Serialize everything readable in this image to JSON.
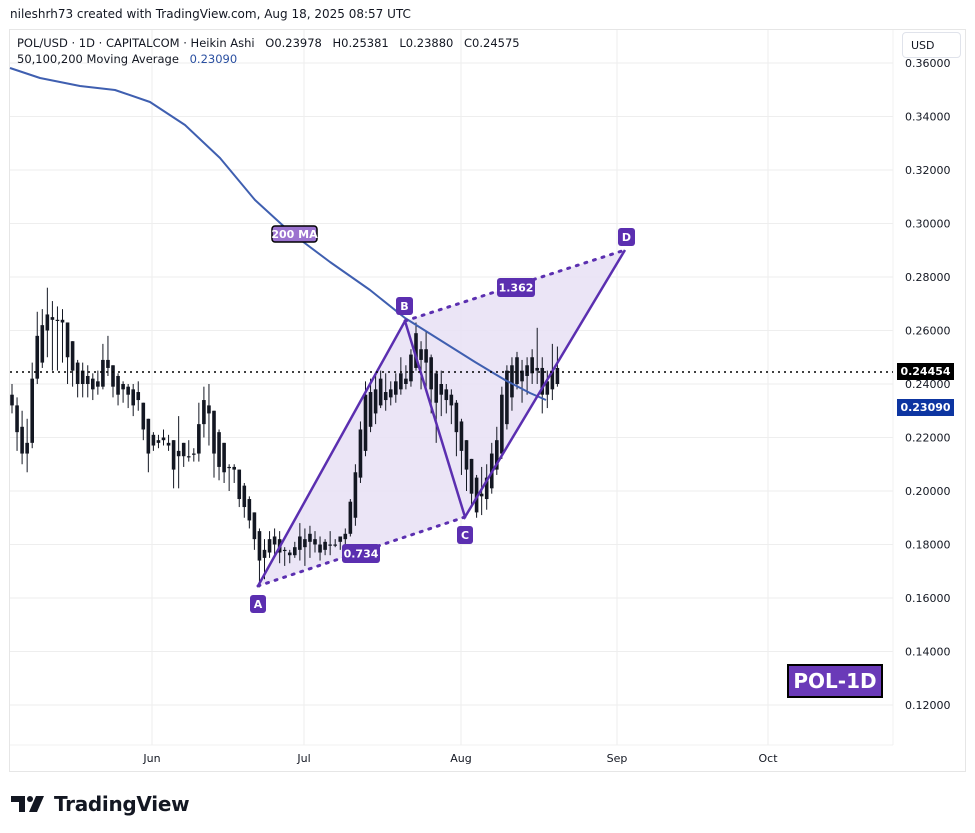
{
  "header": {
    "credit": "nileshrh73 created with TradingView.com, Aug 18, 2025 08:57 UTC"
  },
  "legend": {
    "symbol": "POL/USD · 1D · CAPITALCOM · Heikin Ashi",
    "open": "O0.23978",
    "high": "H0.25381",
    "low": "L0.23880",
    "close": "C0.24575",
    "ma_label": "50,100,200 Moving Average",
    "ma_value": "0.23090"
  },
  "price_axis": {
    "currency_button": "USD",
    "last_price_tag": "0.24454",
    "ma_price_tag": "0.23090",
    "last_price_color": "#000000",
    "ma_tag_color": "#0d35a1"
  },
  "badge": {
    "label": "POL-1D",
    "color": "#6a3ab8"
  },
  "footer": {
    "logo_text": "TradingView"
  },
  "annotations": {
    "ma_label": "200 MA",
    "points": [
      "A",
      "B",
      "C",
      "D"
    ],
    "ratio_xab": "0.734",
    "ratio_bd": "1.362",
    "pattern_color": "#5b2fb0",
    "fill_color": "#e8e0f5"
  },
  "chart_data": {
    "type": "candlestick",
    "title": "POL/USD · 1D · CAPITALCOM · Heikin Ashi",
    "ohlc_last": {
      "open": 0.23978,
      "high": 0.25381,
      "low": 0.2388,
      "close": 0.24575
    },
    "last_price": 0.24454,
    "xlabel": "",
    "ylabel": "USD",
    "x_ticks": [
      "Jun",
      "Jul",
      "Aug",
      "Sep",
      "Oct"
    ],
    "y_ticks": [
      0.12,
      0.14,
      0.16,
      0.18,
      0.2,
      0.22,
      0.24,
      0.26,
      0.28,
      0.3,
      0.32,
      0.34,
      0.36
    ],
    "ylim": [
      0.11,
      0.37
    ],
    "grid": true,
    "series": [
      {
        "name": "200 MA",
        "indicator": "50,100,200 Moving Average",
        "current_value": 0.2309,
        "color": "#3f5fb0",
        "points": [
          {
            "date": "May 3",
            "value": 0.357
          },
          {
            "date": "May 13",
            "value": 0.352
          },
          {
            "date": "May 23",
            "value": 0.349
          },
          {
            "date": "Jun 1",
            "value": 0.343
          },
          {
            "date": "Jun 10",
            "value": 0.33
          },
          {
            "date": "Jun 20",
            "value": 0.308
          },
          {
            "date": "Jul 1",
            "value": 0.288
          },
          {
            "date": "Jul 10",
            "value": 0.277
          },
          {
            "date": "Jul 22",
            "value": 0.263
          },
          {
            "date": "Aug 1",
            "value": 0.249
          },
          {
            "date": "Aug 10",
            "value": 0.239
          },
          {
            "date": "Aug 18",
            "value": 0.2309
          }
        ]
      }
    ],
    "harmonic_pattern": {
      "points": [
        {
          "label": "A",
          "date": "Jun 21",
          "price": 0.164
        },
        {
          "label": "B",
          "date": "Jul 21",
          "price": 0.263
        },
        {
          "label": "C",
          "date": "Aug 1",
          "price": 0.19
        },
        {
          "label": "D",
          "date": "Sep 2",
          "price": 0.29
        }
      ],
      "ratios": [
        {
          "between": "A-C",
          "value": 0.734
        },
        {
          "between": "B-D",
          "value": 1.362
        }
      ]
    },
    "candles": [
      {
        "d": 0,
        "o": 0.236,
        "h": 0.24,
        "l": 0.229,
        "c": 0.232
      },
      {
        "d": 1,
        "o": 0.232,
        "h": 0.235,
        "l": 0.215,
        "c": 0.222
      },
      {
        "d": 2,
        "o": 0.224,
        "h": 0.23,
        "l": 0.21,
        "c": 0.214
      },
      {
        "d": 3,
        "o": 0.214,
        "h": 0.227,
        "l": 0.207,
        "c": 0.218
      },
      {
        "d": 4,
        "o": 0.218,
        "h": 0.248,
        "l": 0.216,
        "c": 0.242
      },
      {
        "d": 5,
        "o": 0.242,
        "h": 0.267,
        "l": 0.24,
        "c": 0.258
      },
      {
        "d": 6,
        "o": 0.248,
        "h": 0.268,
        "l": 0.246,
        "c": 0.262
      },
      {
        "d": 7,
        "o": 0.26,
        "h": 0.276,
        "l": 0.25,
        "c": 0.266
      },
      {
        "d": 8,
        "o": 0.265,
        "h": 0.271,
        "l": 0.245,
        "c": 0.264
      },
      {
        "d": 9,
        "o": 0.264,
        "h": 0.269,
        "l": 0.245,
        "c": 0.264
      },
      {
        "d": 10,
        "o": 0.264,
        "h": 0.268,
        "l": 0.248,
        "c": 0.263
      },
      {
        "d": 11,
        "o": 0.263,
        "h": 0.263,
        "l": 0.24,
        "c": 0.25
      },
      {
        "d": 12,
        "o": 0.256,
        "h": 0.256,
        "l": 0.239,
        "c": 0.245
      },
      {
        "d": 13,
        "o": 0.248,
        "h": 0.249,
        "l": 0.235,
        "c": 0.24
      },
      {
        "d": 14,
        "o": 0.245,
        "h": 0.248,
        "l": 0.235,
        "c": 0.24
      },
      {
        "d": 15,
        "o": 0.243,
        "h": 0.247,
        "l": 0.235,
        "c": 0.24
      },
      {
        "d": 16,
        "o": 0.242,
        "h": 0.244,
        "l": 0.234,
        "c": 0.238
      },
      {
        "d": 17,
        "o": 0.239,
        "h": 0.245,
        "l": 0.236,
        "c": 0.241
      },
      {
        "d": 18,
        "o": 0.239,
        "h": 0.255,
        "l": 0.238,
        "c": 0.249
      },
      {
        "d": 19,
        "o": 0.249,
        "h": 0.258,
        "l": 0.243,
        "c": 0.246
      },
      {
        "d": 20,
        "o": 0.247,
        "h": 0.247,
        "l": 0.235,
        "c": 0.239
      },
      {
        "d": 21,
        "o": 0.243,
        "h": 0.244,
        "l": 0.232,
        "c": 0.236
      },
      {
        "d": 22,
        "o": 0.24,
        "h": 0.241,
        "l": 0.233,
        "c": 0.238
      },
      {
        "d": 23,
        "o": 0.239,
        "h": 0.24,
        "l": 0.231,
        "c": 0.236
      },
      {
        "d": 24,
        "o": 0.238,
        "h": 0.24,
        "l": 0.228,
        "c": 0.232
      },
      {
        "d": 25,
        "o": 0.237,
        "h": 0.241,
        "l": 0.23,
        "c": 0.234
      },
      {
        "d": 26,
        "o": 0.233,
        "h": 0.233,
        "l": 0.219,
        "c": 0.223
      },
      {
        "d": 27,
        "o": 0.227,
        "h": 0.227,
        "l": 0.207,
        "c": 0.214
      },
      {
        "d": 28,
        "o": 0.221,
        "h": 0.222,
        "l": 0.215,
        "c": 0.217
      },
      {
        "d": 29,
        "o": 0.218,
        "h": 0.221,
        "l": 0.216,
        "c": 0.219
      },
      {
        "d": 30,
        "o": 0.22,
        "h": 0.223,
        "l": 0.217,
        "c": 0.219
      },
      {
        "d": 31,
        "o": 0.218,
        "h": 0.221,
        "l": 0.215,
        "c": 0.217
      },
      {
        "d": 32,
        "o": 0.219,
        "h": 0.219,
        "l": 0.201,
        "c": 0.208
      },
      {
        "d": 33,
        "o": 0.213,
        "h": 0.228,
        "l": 0.201,
        "c": 0.215
      },
      {
        "d": 34,
        "o": 0.218,
        "h": 0.218,
        "l": 0.209,
        "c": 0.213
      },
      {
        "d": 35,
        "o": 0.213,
        "h": 0.219,
        "l": 0.211,
        "c": 0.213
      },
      {
        "d": 36,
        "o": 0.214,
        "h": 0.216,
        "l": 0.211,
        "c": 0.214
      },
      {
        "d": 37,
        "o": 0.214,
        "h": 0.233,
        "l": 0.211,
        "c": 0.225
      },
      {
        "d": 38,
        "o": 0.225,
        "h": 0.239,
        "l": 0.22,
        "c": 0.234
      },
      {
        "d": 39,
        "o": 0.232,
        "h": 0.24,
        "l": 0.217,
        "c": 0.229
      },
      {
        "d": 40,
        "o": 0.23,
        "h": 0.23,
        "l": 0.205,
        "c": 0.214
      },
      {
        "d": 41,
        "o": 0.222,
        "h": 0.223,
        "l": 0.204,
        "c": 0.209
      },
      {
        "d": 42,
        "o": 0.218,
        "h": 0.218,
        "l": 0.203,
        "c": 0.207
      },
      {
        "d": 43,
        "o": 0.209,
        "h": 0.21,
        "l": 0.2,
        "c": 0.209
      },
      {
        "d": 44,
        "o": 0.209,
        "h": 0.21,
        "l": 0.203,
        "c": 0.208
      },
      {
        "d": 45,
        "o": 0.208,
        "h": 0.208,
        "l": 0.194,
        "c": 0.197
      },
      {
        "d": 46,
        "o": 0.202,
        "h": 0.203,
        "l": 0.19,
        "c": 0.194
      },
      {
        "d": 47,
        "o": 0.197,
        "h": 0.198,
        "l": 0.186,
        "c": 0.189
      },
      {
        "d": 48,
        "o": 0.192,
        "h": 0.192,
        "l": 0.178,
        "c": 0.182
      },
      {
        "d": 49,
        "o": 0.185,
        "h": 0.186,
        "l": 0.164,
        "c": 0.174
      },
      {
        "d": 50,
        "o": 0.175,
        "h": 0.182,
        "l": 0.167,
        "c": 0.178
      },
      {
        "d": 51,
        "o": 0.177,
        "h": 0.185,
        "l": 0.175,
        "c": 0.182
      },
      {
        "d": 52,
        "o": 0.18,
        "h": 0.186,
        "l": 0.176,
        "c": 0.183
      },
      {
        "d": 53,
        "o": 0.182,
        "h": 0.185,
        "l": 0.173,
        "c": 0.177
      },
      {
        "d": 54,
        "o": 0.178,
        "h": 0.179,
        "l": 0.172,
        "c": 0.178
      },
      {
        "d": 55,
        "o": 0.177,
        "h": 0.178,
        "l": 0.173,
        "c": 0.176
      },
      {
        "d": 56,
        "o": 0.176,
        "h": 0.181,
        "l": 0.175,
        "c": 0.179
      },
      {
        "d": 57,
        "o": 0.178,
        "h": 0.188,
        "l": 0.174,
        "c": 0.183
      },
      {
        "d": 58,
        "o": 0.182,
        "h": 0.186,
        "l": 0.172,
        "c": 0.179
      },
      {
        "d": 59,
        "o": 0.181,
        "h": 0.187,
        "l": 0.175,
        "c": 0.184
      },
      {
        "d": 60,
        "o": 0.182,
        "h": 0.185,
        "l": 0.177,
        "c": 0.18
      },
      {
        "d": 61,
        "o": 0.18,
        "h": 0.183,
        "l": 0.174,
        "c": 0.177
      },
      {
        "d": 62,
        "o": 0.178,
        "h": 0.182,
        "l": 0.176,
        "c": 0.181
      },
      {
        "d": 63,
        "o": 0.18,
        "h": 0.185,
        "l": 0.176,
        "c": 0.18
      },
      {
        "d": 64,
        "o": 0.18,
        "h": 0.182,
        "l": 0.179,
        "c": 0.18
      },
      {
        "d": 65,
        "o": 0.181,
        "h": 0.182,
        "l": 0.178,
        "c": 0.183
      },
      {
        "d": 66,
        "o": 0.182,
        "h": 0.186,
        "l": 0.179,
        "c": 0.184
      },
      {
        "d": 67,
        "o": 0.184,
        "h": 0.197,
        "l": 0.183,
        "c": 0.196
      },
      {
        "d": 68,
        "o": 0.19,
        "h": 0.21,
        "l": 0.187,
        "c": 0.207
      },
      {
        "d": 69,
        "o": 0.205,
        "h": 0.226,
        "l": 0.203,
        "c": 0.223
      },
      {
        "d": 70,
        "o": 0.215,
        "h": 0.241,
        "l": 0.213,
        "c": 0.236
      },
      {
        "d": 71,
        "o": 0.224,
        "h": 0.242,
        "l": 0.222,
        "c": 0.237
      },
      {
        "d": 72,
        "o": 0.229,
        "h": 0.244,
        "l": 0.225,
        "c": 0.238
      },
      {
        "d": 73,
        "o": 0.232,
        "h": 0.245,
        "l": 0.231,
        "c": 0.242
      },
      {
        "d": 74,
        "o": 0.237,
        "h": 0.244,
        "l": 0.23,
        "c": 0.234
      },
      {
        "d": 75,
        "o": 0.235,
        "h": 0.241,
        "l": 0.232,
        "c": 0.238
      },
      {
        "d": 76,
        "o": 0.236,
        "h": 0.244,
        "l": 0.233,
        "c": 0.241
      },
      {
        "d": 77,
        "o": 0.238,
        "h": 0.25,
        "l": 0.236,
        "c": 0.244
      },
      {
        "d": 78,
        "o": 0.24,
        "h": 0.247,
        "l": 0.238,
        "c": 0.242
      },
      {
        "d": 79,
        "o": 0.241,
        "h": 0.253,
        "l": 0.239,
        "c": 0.251
      },
      {
        "d": 80,
        "o": 0.246,
        "h": 0.263,
        "l": 0.245,
        "c": 0.259
      },
      {
        "d": 81,
        "o": 0.249,
        "h": 0.256,
        "l": 0.238,
        "c": 0.253
      },
      {
        "d": 82,
        "o": 0.253,
        "h": 0.26,
        "l": 0.238,
        "c": 0.248
      },
      {
        "d": 83,
        "o": 0.25,
        "h": 0.251,
        "l": 0.229,
        "c": 0.238
      },
      {
        "d": 84,
        "o": 0.244,
        "h": 0.245,
        "l": 0.218,
        "c": 0.233
      },
      {
        "d": 85,
        "o": 0.24,
        "h": 0.245,
        "l": 0.228,
        "c": 0.236
      },
      {
        "d": 86,
        "o": 0.238,
        "h": 0.24,
        "l": 0.229,
        "c": 0.234
      },
      {
        "d": 87,
        "o": 0.236,
        "h": 0.238,
        "l": 0.225,
        "c": 0.232
      },
      {
        "d": 88,
        "o": 0.233,
        "h": 0.234,
        "l": 0.213,
        "c": 0.222
      },
      {
        "d": 89,
        "o": 0.226,
        "h": 0.227,
        "l": 0.206,
        "c": 0.215
      },
      {
        "d": 90,
        "o": 0.219,
        "h": 0.219,
        "l": 0.2,
        "c": 0.208
      },
      {
        "d": 91,
        "o": 0.212,
        "h": 0.212,
        "l": 0.194,
        "c": 0.199
      },
      {
        "d": 92,
        "o": 0.205,
        "h": 0.206,
        "l": 0.19,
        "c": 0.192
      },
      {
        "d": 93,
        "o": 0.199,
        "h": 0.209,
        "l": 0.191,
        "c": 0.198
      },
      {
        "d": 94,
        "o": 0.197,
        "h": 0.21,
        "l": 0.193,
        "c": 0.205
      },
      {
        "d": 95,
        "o": 0.201,
        "h": 0.218,
        "l": 0.199,
        "c": 0.214
      },
      {
        "d": 96,
        "o": 0.208,
        "h": 0.224,
        "l": 0.206,
        "c": 0.219
      },
      {
        "d": 97,
        "o": 0.214,
        "h": 0.239,
        "l": 0.212,
        "c": 0.236
      },
      {
        "d": 98,
        "o": 0.225,
        "h": 0.247,
        "l": 0.223,
        "c": 0.245
      },
      {
        "d": 99,
        "o": 0.235,
        "h": 0.25,
        "l": 0.23,
        "c": 0.247
      },
      {
        "d": 100,
        "o": 0.24,
        "h": 0.252,
        "l": 0.238,
        "c": 0.25
      },
      {
        "d": 101,
        "o": 0.245,
        "h": 0.249,
        "l": 0.233,
        "c": 0.241
      },
      {
        "d": 102,
        "o": 0.243,
        "h": 0.25,
        "l": 0.236,
        "c": 0.247
      },
      {
        "d": 103,
        "o": 0.244,
        "h": 0.253,
        "l": 0.24,
        "c": 0.25
      },
      {
        "d": 104,
        "o": 0.245,
        "h": 0.261,
        "l": 0.24,
        "c": 0.246
      },
      {
        "d": 105,
        "o": 0.246,
        "h": 0.25,
        "l": 0.229,
        "c": 0.236
      },
      {
        "d": 106,
        "o": 0.241,
        "h": 0.245,
        "l": 0.231,
        "c": 0.236
      },
      {
        "d": 107,
        "o": 0.238,
        "h": 0.255,
        "l": 0.234,
        "c": 0.245
      },
      {
        "d": 108,
        "o": 0.24,
        "h": 0.254,
        "l": 0.239,
        "c": 0.246
      }
    ]
  }
}
